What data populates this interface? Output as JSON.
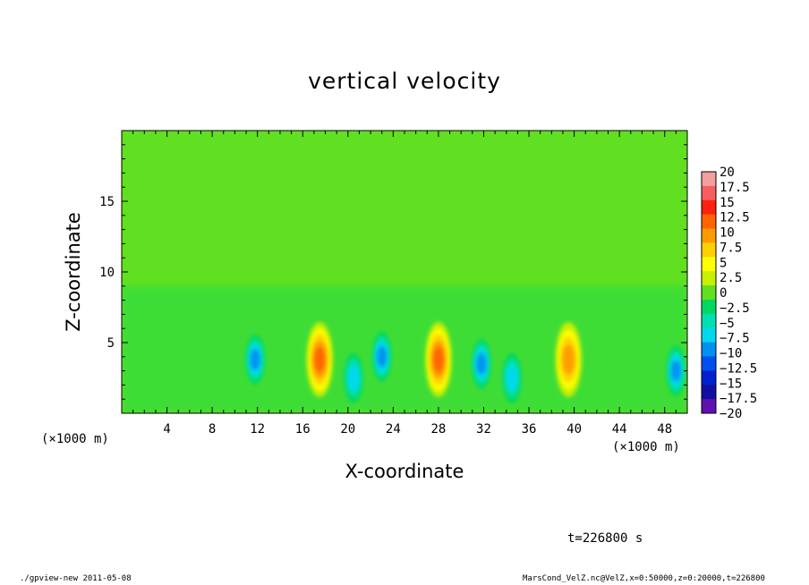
{
  "chart_data": {
    "type": "heatmap",
    "title": "vertical velocity",
    "xlabel": "X-coordinate",
    "ylabel": "Z-coordinate",
    "x_unit": "(×1000 m)",
    "xlim": [
      0,
      50
    ],
    "ylim": [
      0,
      20
    ],
    "x_ticks": [
      "4",
      "8",
      "12",
      "16",
      "20",
      "24",
      "28",
      "32",
      "36",
      "40",
      "44",
      "48"
    ],
    "y_ticks": [
      "5",
      "10",
      "15"
    ],
    "colorbar": {
      "levels": [
        "20",
        "17.5",
        "15",
        "12.5",
        "10",
        "7.5",
        "5",
        "2.5",
        "0",
        "−2.5",
        "−5",
        "−7.5",
        "−10",
        "−12.5",
        "−15",
        "−17.5",
        "−20"
      ],
      "colors": [
        "#f4a0a0",
        "#f86060",
        "#ff2010",
        "#ff6400",
        "#ff9a00",
        "#ffd000",
        "#ffff00",
        "#c8f000",
        "#60e020",
        "#00d860",
        "#00e0b0",
        "#00d8f0",
        "#0090f0",
        "#0050f0",
        "#0020d0",
        "#1010a0",
        "#6010b0"
      ]
    },
    "features": [
      {
        "x": 17.5,
        "z": 3.8,
        "value": 12.5
      },
      {
        "x": 28.0,
        "z": 3.8,
        "value": 12.5
      },
      {
        "x": 39.5,
        "z": 3.8,
        "value": 10
      },
      {
        "x": 11.8,
        "z": 3.8,
        "value": -10
      },
      {
        "x": 20.5,
        "z": 2.5,
        "value": -7.5
      },
      {
        "x": 23.0,
        "z": 4.0,
        "value": -10
      },
      {
        "x": 31.8,
        "z": 3.5,
        "value": -10
      },
      {
        "x": 34.5,
        "z": 2.5,
        "value": -7.5
      },
      {
        "x": 49.0,
        "z": 3.0,
        "value": -10
      }
    ],
    "time_label": "t=226800 s"
  },
  "footer": {
    "left": "./gpview-new  2011-05-08",
    "right": "MarsCond_VelZ.nc@VelZ,x=0:50000,z=0:20000,t=226800"
  }
}
